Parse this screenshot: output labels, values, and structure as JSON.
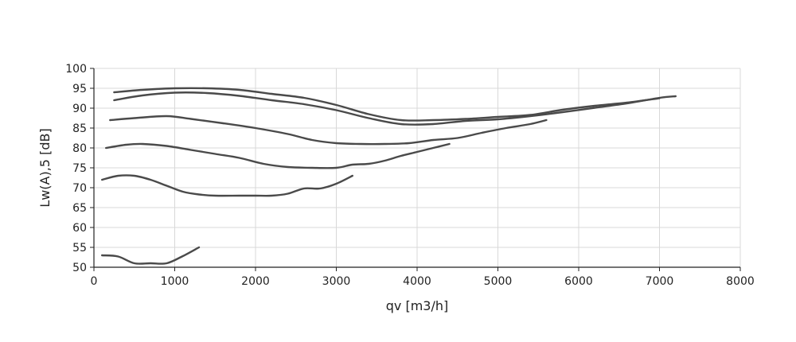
{
  "chart_data": {
    "type": "line",
    "title": "",
    "xlabel": "qv [m3/h]",
    "ylabel": "Lw(A),5 [dB]",
    "xlim": [
      0,
      8000
    ],
    "ylim": [
      50,
      100
    ],
    "x_ticks": [
      "0",
      "1000",
      "2000",
      "3000",
      "4000",
      "5000",
      "6000",
      "7000",
      "8000"
    ],
    "y_ticks": [
      "50",
      "55",
      "60",
      "65",
      "70",
      "75",
      "80",
      "85",
      "90",
      "95",
      "100"
    ],
    "grid": true,
    "line_color": "#4a4a4a",
    "series": [
      {
        "x": [
          100,
          300,
          500,
          700,
          900,
          1100,
          1300
        ],
        "y": [
          53,
          52.7,
          51,
          51,
          51,
          52.8,
          55
        ]
      },
      {
        "x": [
          100,
          300,
          500,
          700,
          900,
          1100,
          1300,
          1500,
          1800,
          2000,
          2200,
          2400,
          2600,
          2800,
          3000,
          3200
        ],
        "y": [
          72,
          73,
          73,
          72,
          70.5,
          69,
          68.3,
          68,
          68,
          68,
          68,
          68.5,
          69.8,
          69.8,
          71,
          73
        ]
      },
      {
        "x": [
          150,
          400,
          600,
          900,
          1200,
          1500,
          1800,
          2100,
          2400,
          2700,
          3000,
          3200,
          3400,
          3600,
          3800,
          4000,
          4200,
          4400
        ],
        "y": [
          80,
          80.8,
          81,
          80.5,
          79.5,
          78.5,
          77.5,
          76,
          75.2,
          75,
          75,
          75.8,
          76,
          76.8,
          78,
          79,
          80,
          81
        ]
      },
      {
        "x": [
          200,
          500,
          900,
          1200,
          1600,
          2000,
          2400,
          2700,
          3000,
          3300,
          3600,
          3900,
          4200,
          4500,
          4800,
          5100,
          5400,
          5600
        ],
        "y": [
          87,
          87.5,
          88,
          87.3,
          86.2,
          85,
          83.5,
          82,
          81.2,
          81,
          81,
          81.2,
          82,
          82.5,
          83.8,
          85,
          86,
          87
        ]
      },
      {
        "x": [
          250,
          600,
          1000,
          1400,
          1800,
          2200,
          2600,
          3000,
          3400,
          3800,
          4200,
          4600,
          5000,
          5400,
          5800,
          6200,
          6600,
          7000,
          7200
        ],
        "y": [
          92,
          93.2,
          93.9,
          93.8,
          93.1,
          92,
          91,
          89.5,
          87.5,
          86,
          86,
          86.8,
          87.2,
          88,
          89,
          90.1,
          91.2,
          92.6,
          93
        ]
      },
      {
        "x": [
          250,
          600,
          1000,
          1400,
          1800,
          2200,
          2600,
          3000,
          3400,
          3800,
          4200,
          4600,
          5000,
          5400,
          5800,
          6200,
          6600,
          7000
        ],
        "y": [
          94,
          94.6,
          95,
          95,
          94.6,
          93.6,
          92.6,
          90.8,
          88.5,
          87,
          87,
          87.3,
          87.8,
          88.3,
          89.6,
          90.6,
          91.4,
          92.5
        ]
      }
    ]
  }
}
